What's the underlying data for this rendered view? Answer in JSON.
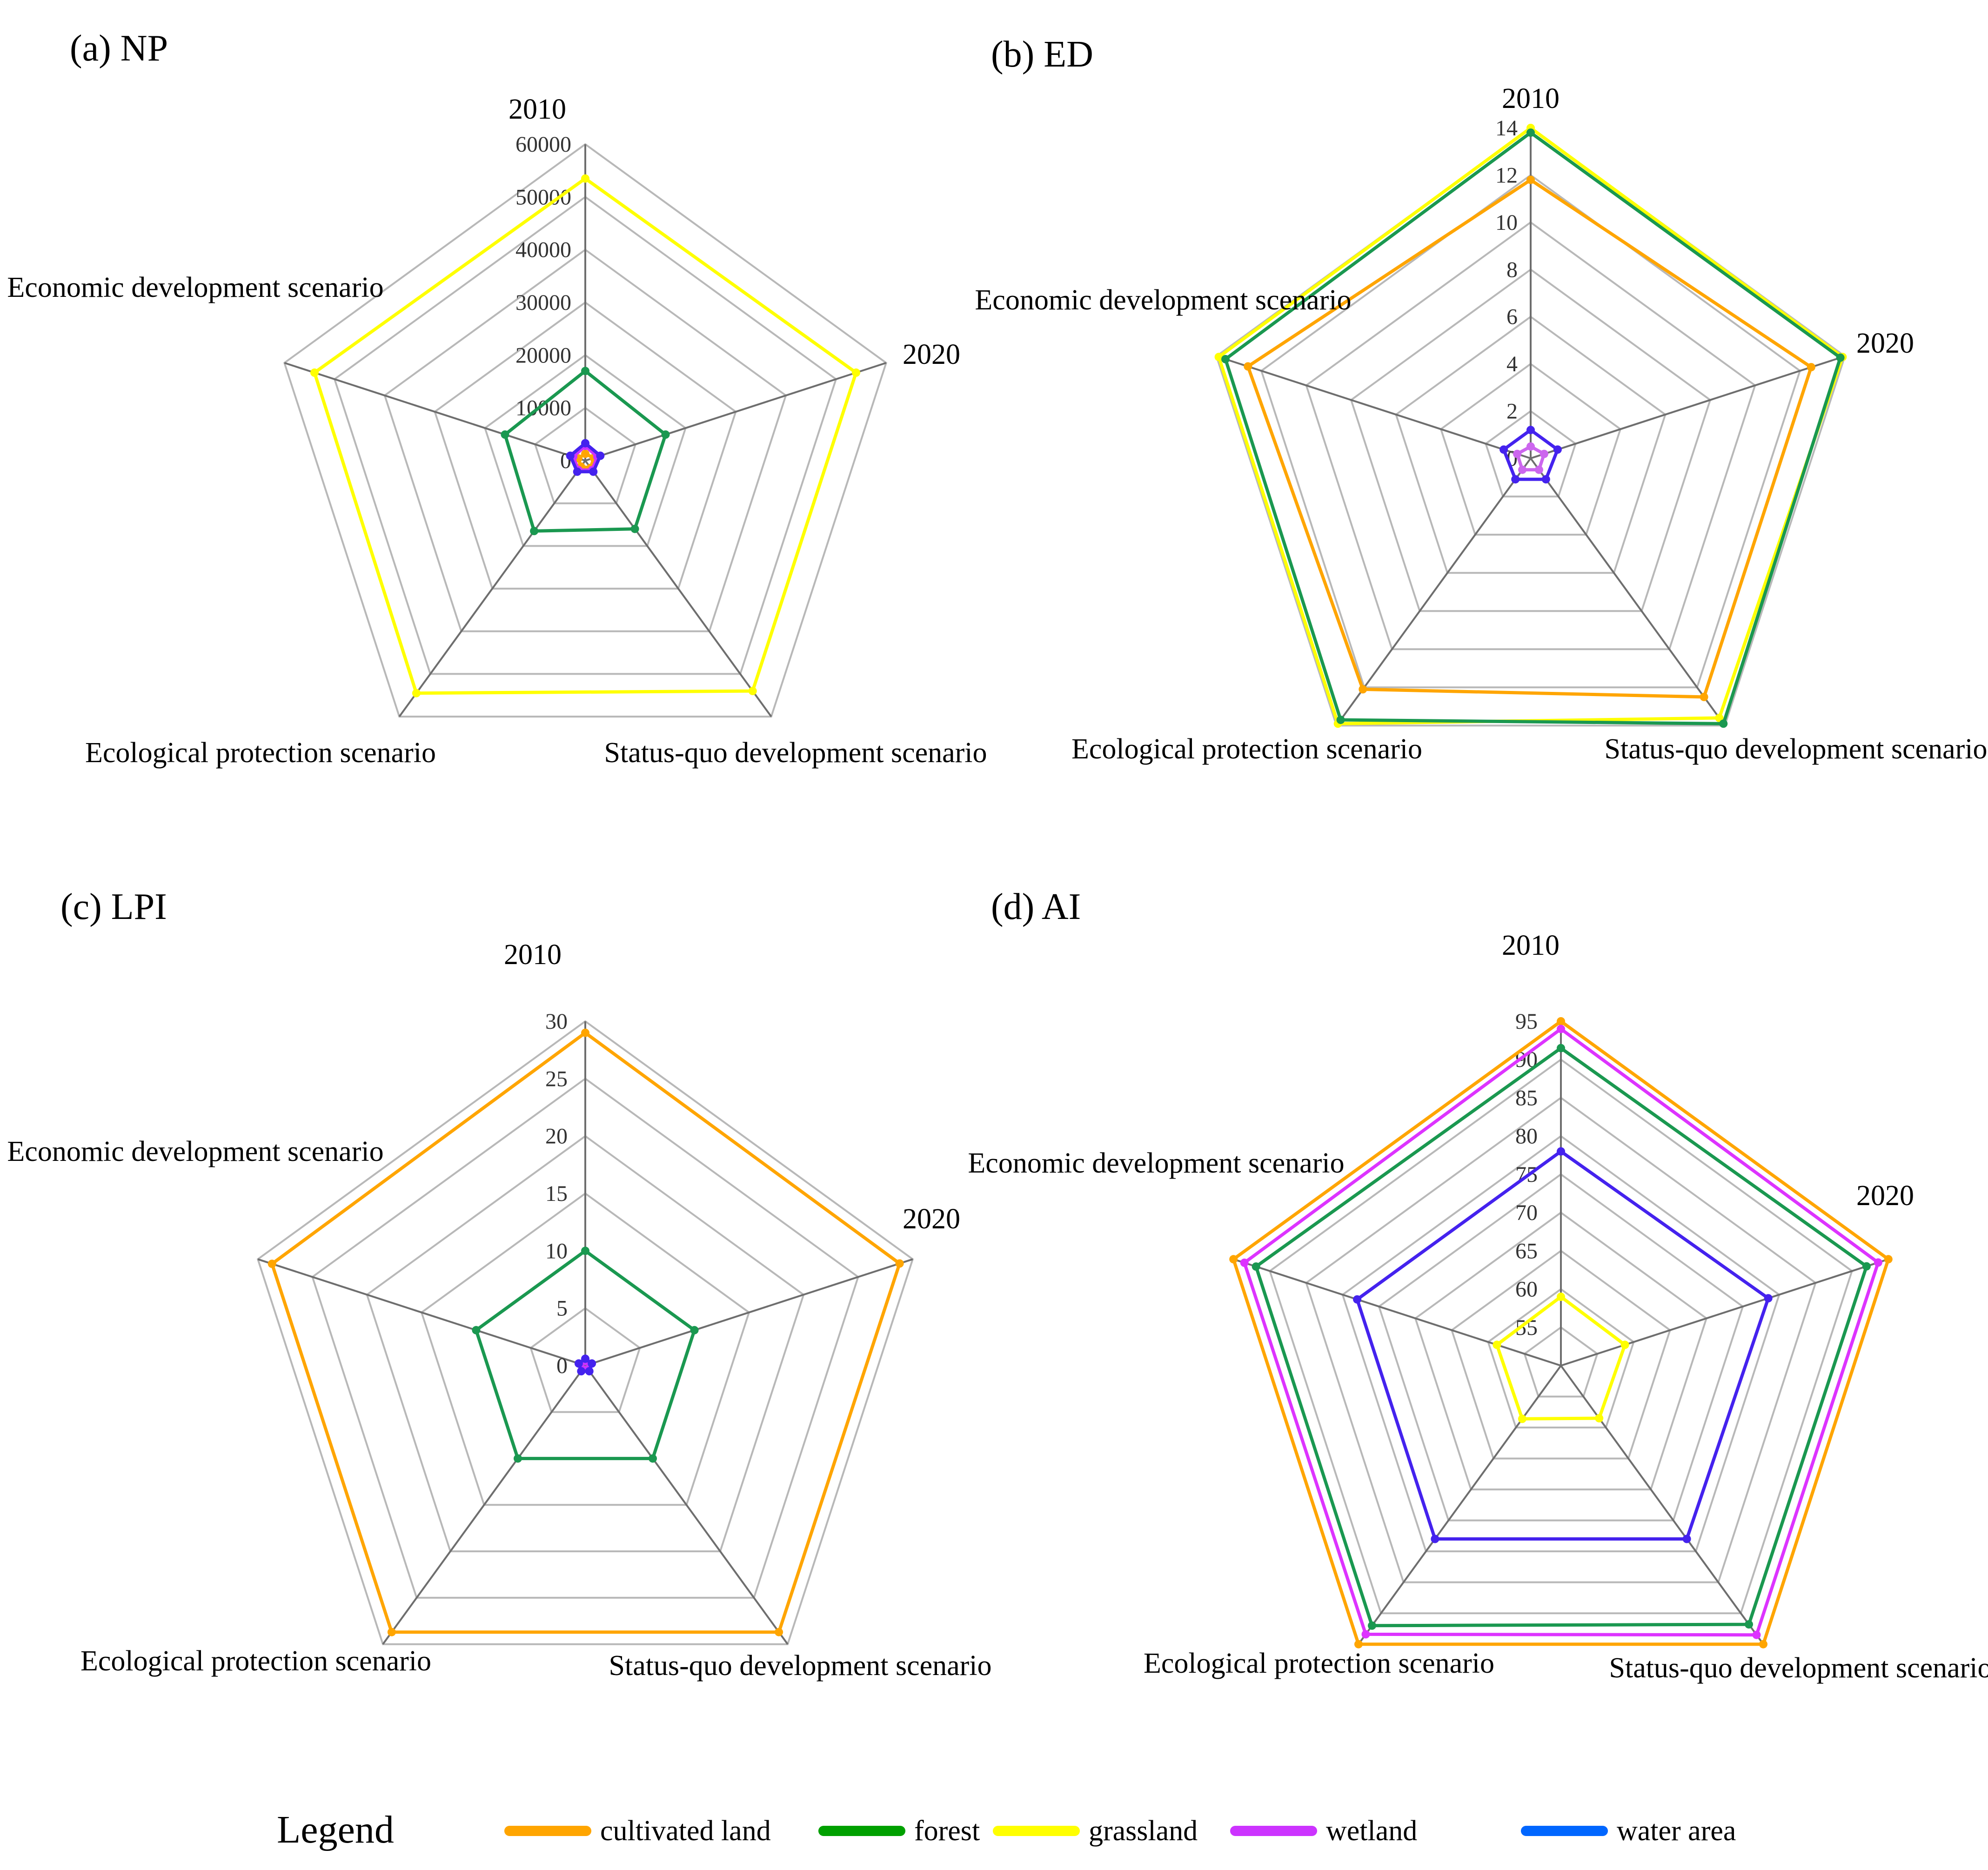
{
  "legend": {
    "title": "Legend",
    "items": [
      {
        "label": "cultivated land",
        "color": "#FFA500"
      },
      {
        "label": "forest",
        "color": "#00A000"
      },
      {
        "label": "grassland",
        "color": "#FFFF00"
      },
      {
        "label": "wetland",
        "color": "#CC33FF"
      },
      {
        "label": "water area",
        "color": "#0066FF"
      }
    ]
  },
  "chart_data": [
    {
      "type": "radar",
      "title": "(a) NP",
      "categories": [
        "2010",
        "2020",
        "Status-quo development scenario",
        "Ecological protection scenario",
        "Economic development scenario"
      ],
      "ticks": [
        "60000",
        "50000",
        "40000",
        "30000",
        "20000",
        "10000",
        "0"
      ],
      "rmin": 0,
      "rmax": 60000,
      "grid_steps": 6,
      "series": [
        {
          "name": "forest",
          "color": "#1A9850",
          "values": [
            17000,
            16000,
            16000,
            16500,
            16000
          ]
        },
        {
          "name": "grassland",
          "color": "#FFFF00",
          "values": [
            53500,
            54000,
            54000,
            54500,
            54000
          ]
        },
        {
          "name": "cultivated land",
          "color": "#FFA500",
          "values": [
            1300,
            1700,
            1700,
            1400,
            1400
          ]
        },
        {
          "name": "wetland",
          "color": "#CC33FF",
          "values": [
            2800,
            2400,
            2200,
            2200,
            2400
          ]
        },
        {
          "name": "water area",
          "color": "#4422EE",
          "values": [
            3300,
            3000,
            2600,
            2600,
            3000
          ]
        }
      ]
    },
    {
      "type": "radar",
      "title": "(b) ED",
      "categories": [
        "2010",
        "2020",
        "Status-quo development scenario",
        "Ecological protection scenario",
        "Economic development scenario"
      ],
      "ticks": [
        "14",
        "12",
        "10",
        "8",
        "6",
        "4",
        "2",
        "0"
      ],
      "rmin": 0,
      "rmax": 14,
      "grid_steps": 7,
      "series": [
        {
          "name": "grassland",
          "color": "#FFFF00",
          "values": [
            14.0,
            13.9,
            13.6,
            13.9,
            13.9
          ]
        },
        {
          "name": "forest",
          "color": "#1A9850",
          "values": [
            13.8,
            13.8,
            13.9,
            13.7,
            13.6
          ]
        },
        {
          "name": "cultivated land",
          "color": "#FFA500",
          "values": [
            11.8,
            12.5,
            12.5,
            12.1,
            12.6
          ]
        },
        {
          "name": "wetland",
          "color": "#CC66EE",
          "values": [
            0.5,
            0.6,
            0.6,
            0.6,
            0.6
          ]
        },
        {
          "name": "water area",
          "color": "#4422EE",
          "values": [
            1.2,
            1.2,
            1.1,
            1.1,
            1.2
          ]
        }
      ]
    },
    {
      "type": "radar",
      "title": "(c) LPI",
      "categories": [
        "2010",
        "2020",
        "Status-quo development scenario",
        "Ecological protection scenario",
        "Economic development scenario"
      ],
      "ticks": [
        "30",
        "25",
        "20",
        "15",
        "10",
        "5",
        "0"
      ],
      "rmin": 0,
      "rmax": 30,
      "grid_steps": 6,
      "series": [
        {
          "name": "cultivated land",
          "color": "#FFA500",
          "values": [
            29.0,
            28.8,
            28.7,
            28.7,
            28.7
          ]
        },
        {
          "name": "forest",
          "color": "#1A9850",
          "values": [
            10.0,
            10.0,
            10.0,
            10.0,
            10.0
          ]
        },
        {
          "name": "wetland",
          "color": "#CC33FF",
          "values": [
            0.4,
            0.5,
            0.4,
            0.4,
            0.5
          ]
        },
        {
          "name": "water area",
          "color": "#4422EE",
          "values": [
            0.6,
            0.6,
            0.6,
            0.6,
            0.6
          ]
        }
      ]
    },
    {
      "type": "radar",
      "title": "(d) AI",
      "categories": [
        "2010",
        "2020",
        "Status-quo development scenario",
        "Ecological protection scenario",
        "Economic development scenario"
      ],
      "ticks": [
        "95",
        "90",
        "85",
        "80",
        "75",
        "70",
        "65",
        "60",
        "55"
      ],
      "rmin": 50,
      "rmax": 95,
      "grid_steps": 9,
      "series": [
        {
          "name": "cultivated land",
          "color": "#FFA500",
          "values": [
            95.0,
            95.0,
            95.0,
            95.0,
            95.0
          ]
        },
        {
          "name": "wetland",
          "color": "#DD33FF",
          "values": [
            94.0,
            93.6,
            93.5,
            93.4,
            93.5
          ]
        },
        {
          "name": "forest",
          "color": "#1A9850",
          "values": [
            91.5,
            92.0,
            91.8,
            92.0,
            91.9
          ]
        },
        {
          "name": "water area",
          "color": "#4422EE",
          "values": [
            78.0,
            78.5,
            78.0,
            78.0,
            78.0
          ]
        },
        {
          "name": "grassland",
          "color": "#FFFF00",
          "values": [
            59.0,
            58.8,
            58.5,
            58.6,
            58.8
          ]
        }
      ]
    }
  ]
}
